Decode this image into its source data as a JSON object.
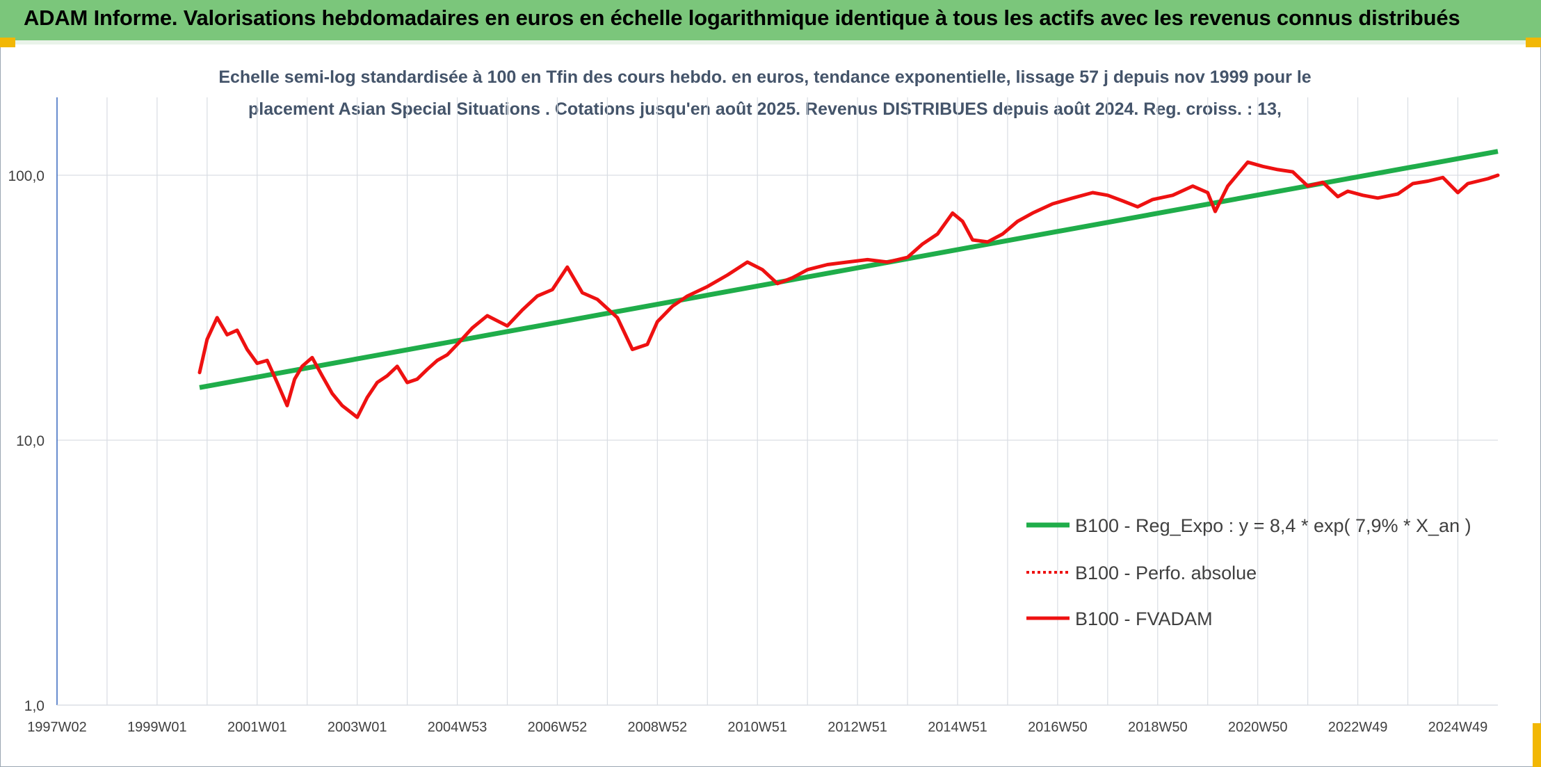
{
  "header": {
    "title": "ADAM Informe. Valorisations hebdomadaires en euros en échelle logarithmique identique à tous les actifs avec les revenus connus distribués"
  },
  "colors": {
    "header_band": "#7bc67b",
    "accent_corner": "#f2b705",
    "trend_line": "#1fad4a",
    "fund_line": "#ee1111",
    "subtitle_text": "#44546a",
    "grid": "#d9dde3",
    "y_axis": "#4472c4"
  },
  "chart_data": {
    "type": "line",
    "subtitle_line1": "Echelle semi-log standardisée à 100 en Tfin des cours hebdo. en euros, tendance exponentielle, lissage 57 j depuis nov 1999 pour le",
    "subtitle_line2": "placement Asian Special Situations . Cotations jusqu'en août 2025. Revenus DISTRIBUES depuis août 2024. Reg. croiss. : 13,",
    "y_scale": "log",
    "ylim": [
      1,
      200
    ],
    "y_ticks": [
      {
        "value": 1,
        "label": "1,0"
      },
      {
        "value": 10,
        "label": "10,0"
      },
      {
        "value": 100,
        "label": "100,0"
      }
    ],
    "xlim": [
      1997.0,
      2025.8
    ],
    "x_ticks": [
      {
        "value": 1997.0,
        "label": "1997W02"
      },
      {
        "value": 1999.0,
        "label": "1999W01"
      },
      {
        "value": 2001.0,
        "label": "2001W01"
      },
      {
        "value": 2003.0,
        "label": "2003W01"
      },
      {
        "value": 2005.0,
        "label": "2004W53"
      },
      {
        "value": 2007.0,
        "label": "2006W52"
      },
      {
        "value": 2009.0,
        "label": "2008W52"
      },
      {
        "value": 2011.0,
        "label": "2010W51"
      },
      {
        "value": 2013.0,
        "label": "2012W51"
      },
      {
        "value": 2015.0,
        "label": "2014W51"
      },
      {
        "value": 2017.0,
        "label": "2016W50"
      },
      {
        "value": 2019.0,
        "label": "2018W50"
      },
      {
        "value": 2021.0,
        "label": "2020W50"
      },
      {
        "value": 2023.0,
        "label": "2022W49"
      },
      {
        "value": 2025.0,
        "label": "2024W49"
      }
    ],
    "grid": true,
    "legend_position": "bottom-right",
    "series": [
      {
        "name": "B100 - Reg_Expo : y = 8,4 * exp( 7,9% *  X_an )",
        "style": "solid",
        "color": "#1fad4a",
        "x": [
          1999.85,
          2025.8
        ],
        "y": [
          15.8,
          123
        ]
      },
      {
        "name": "B100 - Perfo. absolue",
        "style": "dotted",
        "color": "#ee1111",
        "x": [],
        "y": []
      },
      {
        "name": "B100 - FVADAM",
        "style": "solid",
        "color": "#ee1111",
        "x": [
          1999.85,
          2000.0,
          2000.2,
          2000.4,
          2000.6,
          2000.8,
          2001.0,
          2001.2,
          2001.4,
          2001.6,
          2001.75,
          2001.9,
          2002.1,
          2002.3,
          2002.5,
          2002.7,
          2003.0,
          2003.2,
          2003.4,
          2003.6,
          2003.8,
          2004.0,
          2004.2,
          2004.4,
          2004.6,
          2004.8,
          2005.0,
          2005.3,
          2005.6,
          2006.0,
          2006.3,
          2006.6,
          2006.9,
          2007.2,
          2007.5,
          2007.8,
          2008.2,
          2008.5,
          2008.8,
          2009.0,
          2009.3,
          2009.6,
          2010.0,
          2010.4,
          2010.8,
          2011.1,
          2011.4,
          2011.7,
          2012.0,
          2012.4,
          2012.8,
          2013.2,
          2013.6,
          2014.0,
          2014.3,
          2014.6,
          2014.9,
          2015.1,
          2015.3,
          2015.6,
          2015.9,
          2016.2,
          2016.5,
          2016.9,
          2017.3,
          2017.7,
          2018.0,
          2018.3,
          2018.6,
          2018.9,
          2019.3,
          2019.7,
          2020.0,
          2020.15,
          2020.4,
          2020.8,
          2021.1,
          2021.4,
          2021.7,
          2022.0,
          2022.3,
          2022.6,
          2022.8,
          2023.1,
          2023.4,
          2023.8,
          2024.1,
          2024.4,
          2024.7,
          2025.0,
          2025.2,
          2025.4,
          2025.6,
          2025.8
        ],
        "y": [
          18.0,
          24.0,
          29.0,
          25.0,
          26.0,
          22.0,
          19.5,
          20.0,
          16.5,
          13.5,
          17.0,
          19.0,
          20.5,
          17.5,
          15.0,
          13.5,
          12.2,
          14.5,
          16.5,
          17.5,
          19.0,
          16.5,
          17.0,
          18.5,
          20.0,
          21.0,
          23.0,
          26.5,
          29.5,
          27.0,
          31.0,
          35.0,
          37.0,
          45.0,
          36.0,
          34.0,
          29.0,
          22.0,
          23.0,
          28.0,
          32.0,
          35.0,
          38.0,
          42.0,
          47.0,
          44.0,
          39.0,
          41.0,
          44.0,
          46.0,
          47.0,
          48.0,
          47.0,
          49.0,
          55.0,
          60.0,
          72.0,
          67.0,
          57.0,
          56.0,
          60.0,
          67.0,
          72.0,
          78.0,
          82.0,
          86.0,
          84.0,
          80.0,
          76.0,
          81.0,
          84.0,
          91.0,
          86.0,
          73.0,
          91.0,
          112.0,
          108.0,
          105.0,
          103.0,
          91.0,
          94.0,
          83.0,
          87.0,
          84.0,
          82.0,
          85.0,
          93.0,
          95.0,
          98.0,
          86.0,
          93.0,
          95.0,
          97.0,
          100.0
        ]
      }
    ]
  }
}
